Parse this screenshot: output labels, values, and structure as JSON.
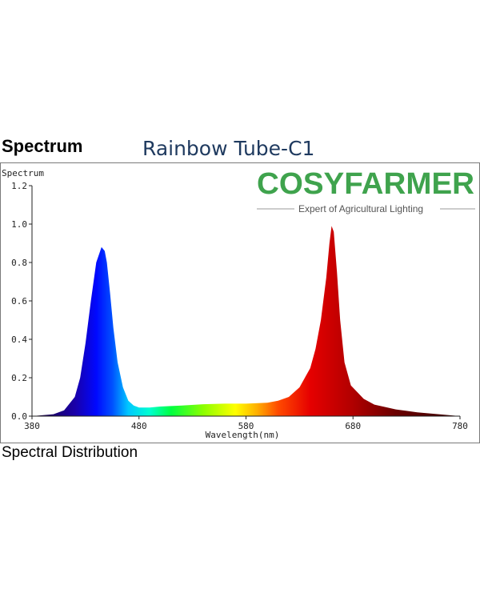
{
  "header": {
    "section_title": "Spectrum",
    "product_title": "Rainbow Tube-C1"
  },
  "brand": {
    "logo_text": "COSYFARMER",
    "tagline": "Expert of Agricultural Lighting",
    "color": "#3fa34d",
    "accent_color": "#f2b233"
  },
  "caption": "Spectral Distribution",
  "chart_data": {
    "type": "area",
    "ylabel": "Spectrum",
    "xlabel": "Wavelength(nm)",
    "xlim": [
      380,
      780
    ],
    "ylim": [
      0,
      1.2
    ],
    "x_ticks": [
      "380",
      "480",
      "580",
      "680",
      "780"
    ],
    "y_ticks": [
      "0.0",
      "0.2",
      "0.4",
      "0.6",
      "0.8",
      "1.0",
      "1.2"
    ],
    "fill": "visible-spectrum-gradient",
    "series": [
      {
        "x": [
          380,
          400,
          410,
          420,
          425,
          430,
          435,
          440,
          445,
          448,
          450,
          453,
          456,
          460,
          465,
          470,
          475,
          480,
          490,
          500,
          520,
          540,
          560,
          580,
          600,
          610,
          620,
          630,
          640,
          645,
          650,
          655,
          658,
          660,
          662,
          665,
          668,
          672,
          678,
          690,
          700,
          720,
          740,
          760,
          780
        ],
        "values": [
          0.0,
          0.01,
          0.03,
          0.1,
          0.2,
          0.38,
          0.6,
          0.8,
          0.88,
          0.86,
          0.8,
          0.64,
          0.46,
          0.28,
          0.15,
          0.08,
          0.055,
          0.045,
          0.045,
          0.05,
          0.055,
          0.062,
          0.065,
          0.065,
          0.07,
          0.08,
          0.1,
          0.15,
          0.25,
          0.35,
          0.5,
          0.72,
          0.9,
          0.99,
          0.96,
          0.75,
          0.5,
          0.28,
          0.16,
          0.09,
          0.06,
          0.035,
          0.02,
          0.01,
          0.0
        ]
      }
    ]
  }
}
